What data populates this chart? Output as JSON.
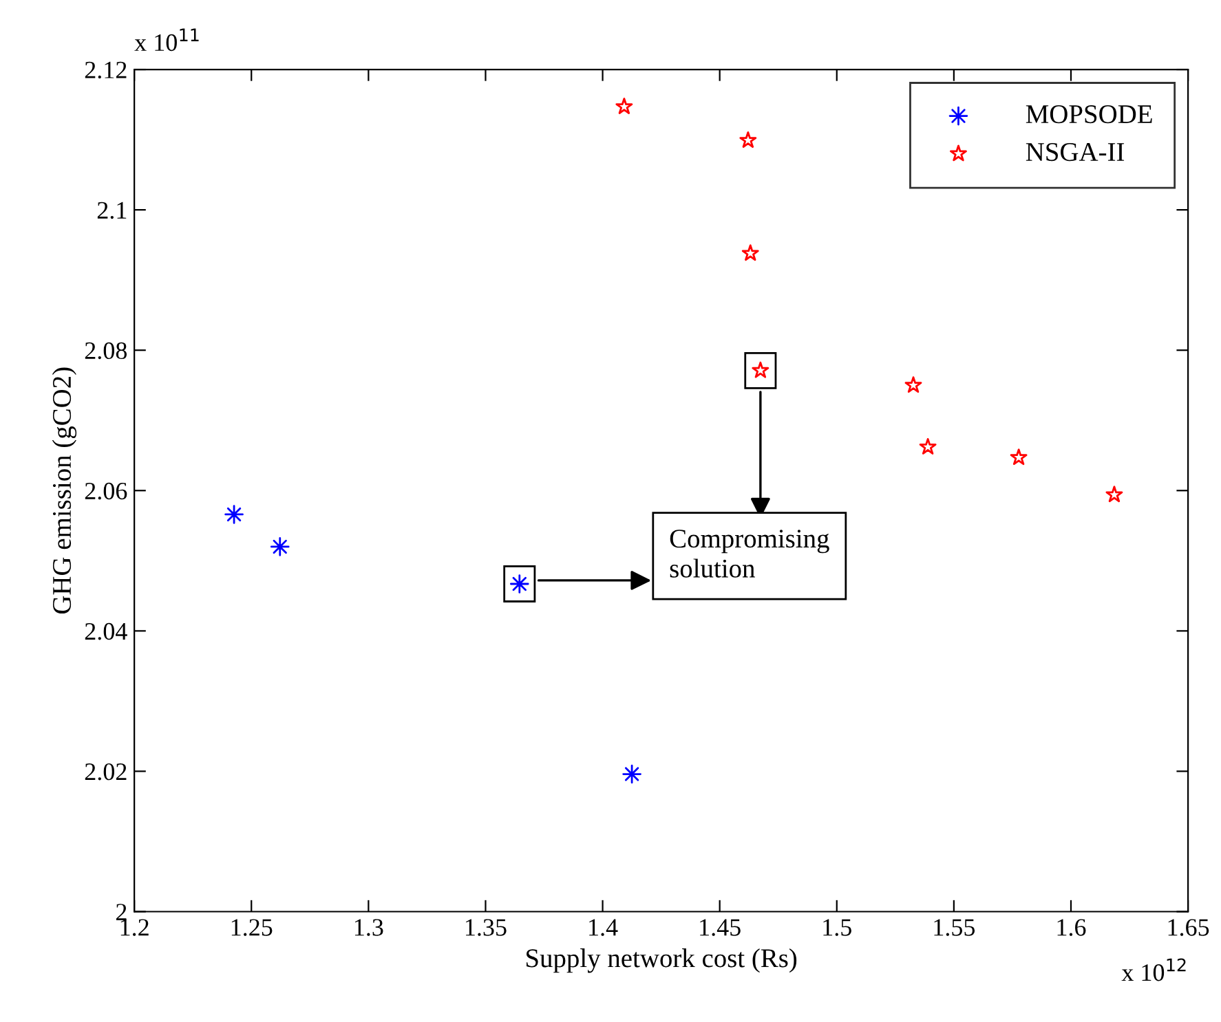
{
  "chart_data": {
    "type": "scatter",
    "xlabel": "Supply network cost (Rs)",
    "ylabel": "GHG emission (gCO2)",
    "xlim": [
      1.2,
      1.65
    ],
    "xticks": [
      1.2,
      1.25,
      1.3,
      1.35,
      1.4,
      1.45,
      1.5,
      1.55,
      1.6,
      1.65
    ],
    "ylim": [
      2.0,
      2.12
    ],
    "yticks": [
      {
        "value": 2.0,
        "label": "2"
      },
      2.02,
      2.04,
      2.06,
      2.08,
      {
        "value": 2.1,
        "label": "2.1"
      },
      2.12
    ],
    "grid": false,
    "legend": "top right",
    "series": [
      {
        "name": "MOPSODE",
        "color": "#0000ff",
        "marker": "cross",
        "x": [
          1.2426,
          1.2622,
          1.3645,
          1.4125
        ],
        "values": [
          2.0566,
          2.052,
          2.0467,
          2.0196
        ]
      },
      {
        "name": "NSGA-II",
        "color": "#ff0000",
        "marker": "star",
        "x": [
          1.4092,
          1.4621,
          1.4631,
          1.4674,
          1.5327,
          1.5389,
          1.5777,
          1.6185
        ],
        "values": [
          2.1147,
          2.1099,
          2.0938,
          2.0771,
          2.075,
          2.0662,
          2.0647,
          2.0594
        ]
      }
    ],
    "annotations": [
      "x 10$^{11}$",
      "x 10$^{12}$",
      "Compromising solution"
    ]
  }
}
